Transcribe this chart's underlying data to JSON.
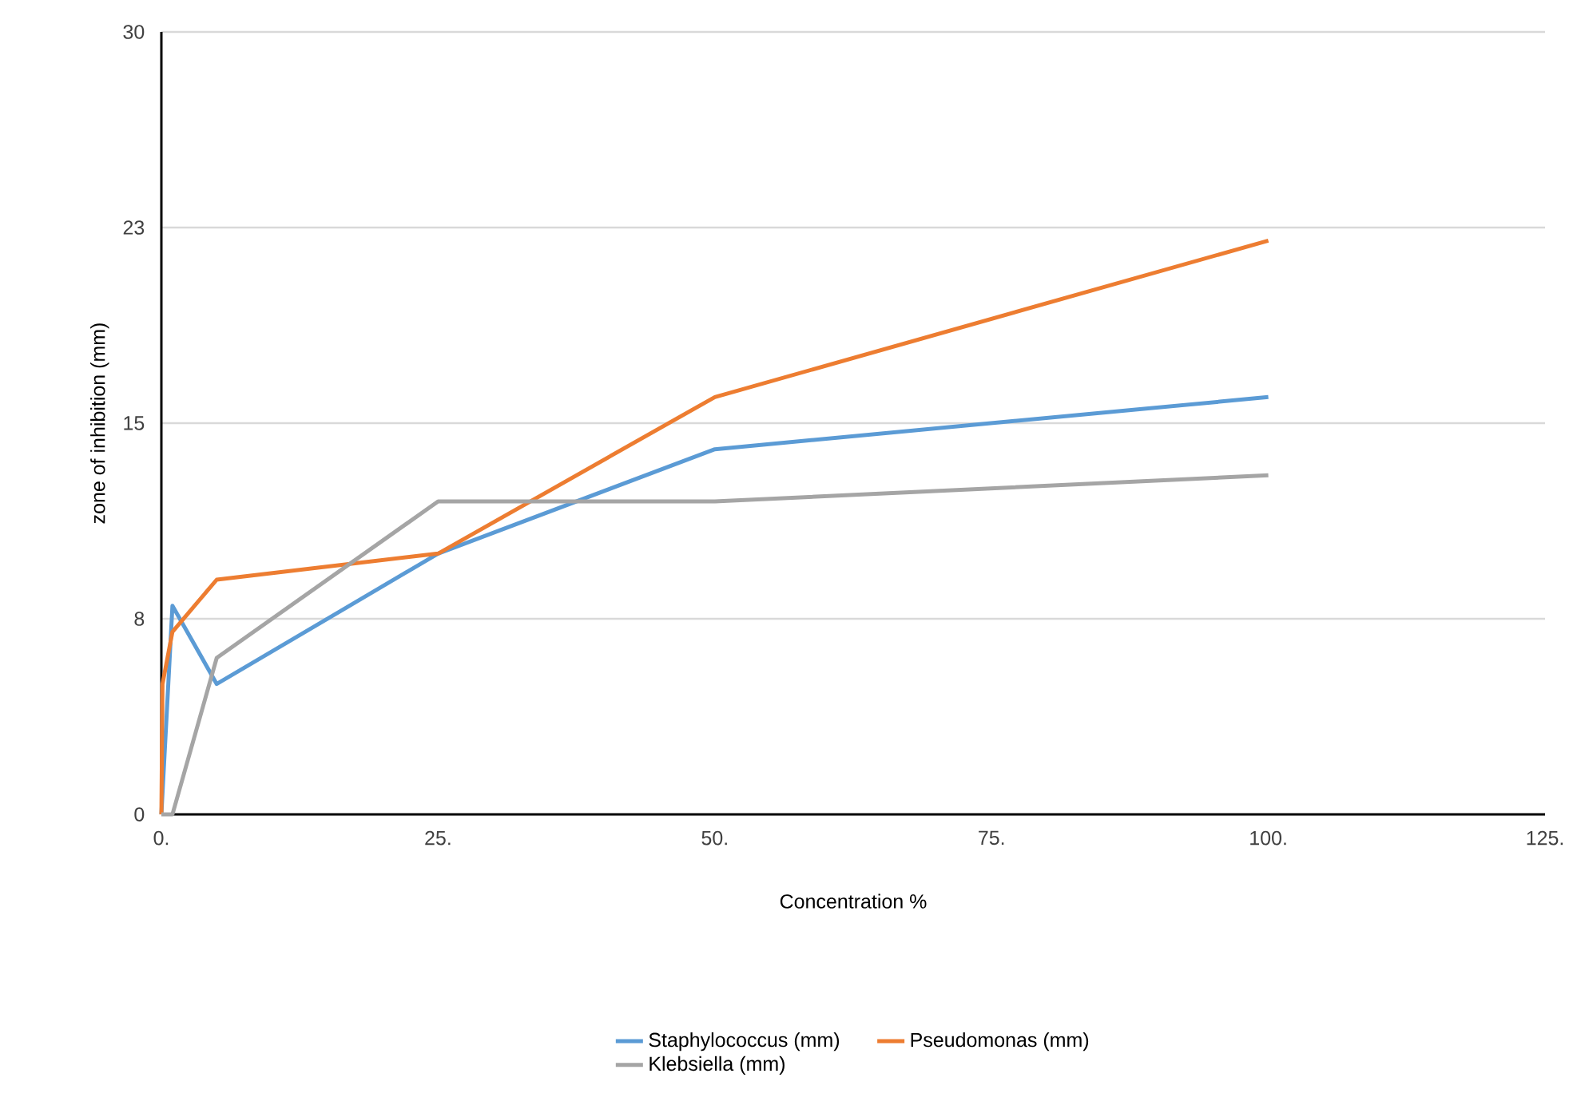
{
  "chart_data": {
    "type": "line",
    "xlabel": "Concentration %",
    "ylabel": "zone of inhibition (mm)",
    "xlim": [
      0,
      125
    ],
    "xticks": [
      {
        "value": 0,
        "label": "0."
      },
      {
        "value": 25,
        "label": "25."
      },
      {
        "value": 50,
        "label": "50."
      },
      {
        "value": 75,
        "label": "75."
      },
      {
        "value": 100,
        "label": "100."
      },
      {
        "value": 125,
        "label": "125."
      }
    ],
    "ylim": [
      0,
      30
    ],
    "yticks": [
      0,
      {
        "value": 7.5,
        "label": "8"
      },
      15,
      {
        "value": 22.5,
        "label": "23"
      },
      30
    ],
    "grid": "y",
    "legend": "bottom",
    "marker": "none",
    "line_style": "solid",
    "series": [
      {
        "name": "Staphylococcus (mm)",
        "color": "#5b9bd5",
        "x": [
          0,
          0.1,
          1,
          5,
          25,
          50,
          100
        ],
        "values": [
          0,
          null,
          8,
          5,
          10,
          14,
          16
        ]
      },
      {
        "name": "Pseudomonas (mm)",
        "color": "#ed7d31",
        "x": [
          0,
          0.1,
          1,
          5,
          25,
          50,
          100
        ],
        "values": [
          0,
          5,
          7,
          9,
          10,
          16,
          22
        ]
      },
      {
        "name": "Klebsiella (mm)",
        "color": "#a5a5a5",
        "x": [
          0,
          1,
          5,
          25,
          50,
          100
        ],
        "values": [
          0,
          0,
          6,
          12,
          12,
          13
        ]
      }
    ]
  }
}
